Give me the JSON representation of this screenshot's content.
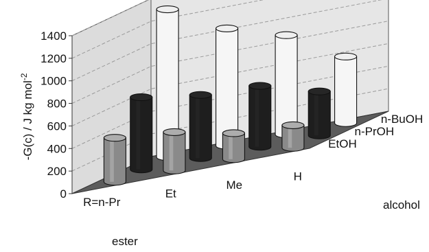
{
  "chart_data": {
    "type": "bar",
    "style": "3d-cylinder",
    "ylabel": "-G(c) / J kg mol",
    "ylabel_superscript": "-2",
    "xlabel": "ester",
    "zlabel": "alcohol",
    "ylim": [
      0,
      1400
    ],
    "yticks": [
      0,
      200,
      400,
      600,
      800,
      1000,
      1200,
      1400
    ],
    "grid": true,
    "legend": "none",
    "categories": [
      "R=n-Pr",
      "Et",
      "Me",
      "H"
    ],
    "series": [
      {
        "name": "EtOH",
        "values": [
          390,
          340,
          230,
          200
        ],
        "color": "#8a8a8a"
      },
      {
        "name": "n-PrOH",
        "values": [
          640,
          560,
          540,
          390
        ],
        "color": "#1e1e1e"
      },
      {
        "name": "n-BuOH",
        "values": [
          1310,
          1040,
          880,
          590
        ],
        "color": "#f6f6f6"
      }
    ]
  }
}
